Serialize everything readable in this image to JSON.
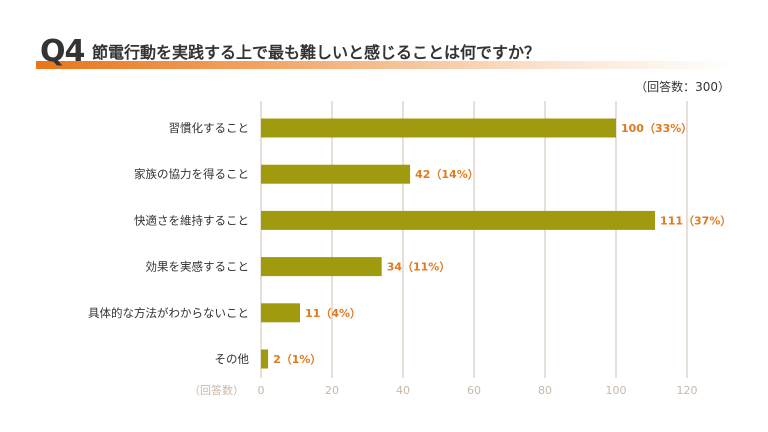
{
  "header": {
    "q_label": "Q4",
    "question": "節電行動を実践する上で最も難しいと感じることは何ですか？",
    "respondents": "（回答数：300）"
  },
  "colors": {
    "bar": "#a09a0f",
    "value_label": "#e07a1f",
    "grid": "#d8cfc4",
    "axis_label": "#c8b8a8",
    "accent": "#e8751a"
  },
  "chart_data": {
    "type": "bar",
    "orientation": "horizontal",
    "categories": [
      "習慣化すること",
      "家族の協力を得ること",
      "快適さを維持すること",
      "効果を実感すること",
      "具体的な方法がわからないこと",
      "その他"
    ],
    "values": [
      100,
      42,
      111,
      34,
      11,
      2
    ],
    "value_labels": [
      "100（33%）",
      "42（14%）",
      "111（37%）",
      "34（11%）",
      "11（4%）",
      "2（1%）"
    ],
    "xlabel": "（回答数）",
    "xlim": [
      0,
      120
    ],
    "xticks": [
      0,
      20,
      40,
      60,
      80,
      100,
      120
    ],
    "grid": true
  }
}
